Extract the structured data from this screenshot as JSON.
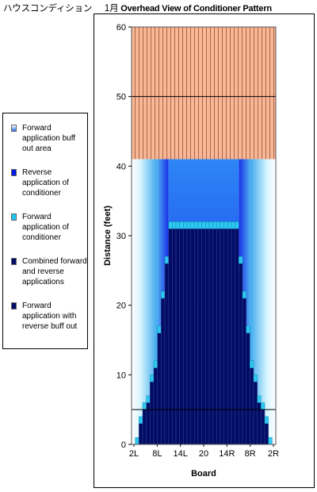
{
  "title": {
    "prefix": "ハウスコンディション",
    "month": "1月",
    "text": "Overhead View of Conditioner Pattern"
  },
  "colors": {
    "buff_lane": "#f7b995",
    "buff_stripe": "#b0614a",
    "navy": "#000c66",
    "cyan": "#2ec8ee",
    "royal": "#0a1ee8",
    "white_fade": "#ffffff"
  },
  "legend": {
    "items": [
      {
        "label": "Forward application buff out area",
        "swatch": "gradient-white-blue"
      },
      {
        "label": "Reverse application of conditioner",
        "swatch": "#0018e0"
      },
      {
        "label": "Forward application of conditioner",
        "swatch": "#22c4f0"
      },
      {
        "label": "Combined forward and reverse applications",
        "swatch": "#000c66"
      },
      {
        "label": "Forward application with reverse buff out",
        "swatch": "#000c66"
      }
    ]
  },
  "chart_data": {
    "type": "area",
    "xlabel": "Board",
    "ylabel": "Distance (feet)",
    "ylim": [
      0,
      60
    ],
    "yticks": [
      "0",
      "10",
      "20",
      "30",
      "40",
      "50",
      "60"
    ],
    "xticks": [
      "2L",
      "8L",
      "14L",
      "20",
      "14R",
      "8R",
      "2R"
    ],
    "boards": 39,
    "conditioner_length_ft": 41,
    "reference_lines_ft": [
      5,
      50
    ],
    "center_block_distance_ft": 32,
    "combined_profile_ft": [
      0,
      1,
      4,
      6,
      7,
      10,
      12,
      17,
      22,
      27,
      32,
      32,
      32,
      32,
      32,
      32,
      32,
      32,
      32,
      32,
      32,
      32,
      32,
      32,
      32,
      32,
      32,
      32,
      32,
      27,
      22,
      17,
      12,
      10,
      7,
      6,
      4,
      1,
      0
    ],
    "cyan_band_ft": 1
  }
}
